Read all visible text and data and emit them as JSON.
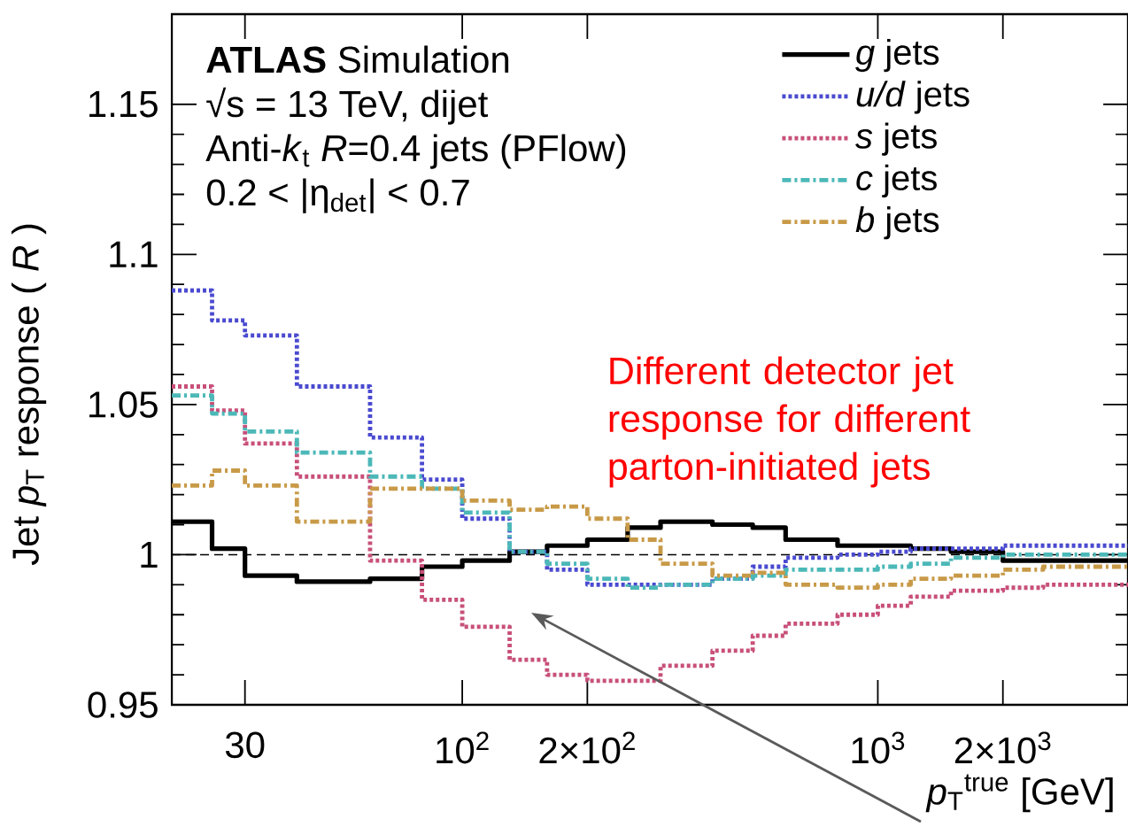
{
  "chart_data": {
    "type": "step",
    "xlabel": "*p*$_{T}$$^{true}$ [GeV]",
    "ylabel": "Jet *p*$_{T}$ response ( *R* )",
    "log": "x",
    "xlim": [
      20,
      4000
    ],
    "ylim": [
      0.95,
      1.18
    ],
    "xticks": [
      30,
      {
        "value": 100,
        "label": "10$^{2}$"
      },
      {
        "value": 200,
        "label": "2×10$^{2}$"
      },
      {
        "value": 1000,
        "label": "10$^{3}$"
      },
      {
        "value": 2000,
        "label": "2×10$^{3}$"
      }
    ],
    "yticks": [
      0.95,
      1,
      1.05,
      1.1,
      1.15
    ],
    "x": [
      20,
      25,
      30,
      40,
      60,
      80,
      100,
      130,
      160,
      200,
      250,
      300,
      400,
      500,
      600,
      800,
      1000,
      1200,
      1500,
      2000,
      2500,
      3000,
      4000
    ],
    "series": [
      {
        "name": "*g* jets",
        "color": "#000000",
        "line_style": "solid",
        "values": [
          1.011,
          1.002,
          0.993,
          0.991,
          0.992,
          0.996,
          0.998,
          1.001,
          1.003,
          1.005,
          1.009,
          1.011,
          1.01,
          1.009,
          1.005,
          1.003,
          1.003,
          1.002,
          1.001,
          0.998,
          0.998,
          0.998,
          0.998
        ]
      },
      {
        "name": "*u/d* jets",
        "color": "#4a4ad0",
        "line_style": "dotted",
        "values": [
          1.088,
          1.078,
          1.073,
          1.056,
          1.039,
          1.025,
          1.012,
          1.001,
          0.995,
          0.99,
          0.99,
          0.99,
          0.992,
          0.996,
          0.999,
          1.0,
          1.001,
          1.002,
          1.002,
          1.003,
          1.003,
          1.003,
          1.003
        ]
      },
      {
        "name": "*s* jets",
        "color": "#c8507a",
        "line_style": "dotted",
        "values": [
          1.056,
          1.048,
          1.037,
          1.026,
          0.998,
          0.985,
          0.976,
          0.965,
          0.96,
          0.958,
          0.958,
          0.963,
          0.968,
          0.973,
          0.977,
          0.98,
          0.983,
          0.986,
          0.988,
          0.989,
          0.99,
          0.99,
          0.99
        ]
      },
      {
        "name": "*c* jets",
        "color": "#4cb8b8",
        "line_style": "dashdot",
        "values": [
          1.053,
          1.047,
          1.041,
          1.034,
          1.026,
          1.022,
          1.014,
          1.001,
          0.997,
          0.992,
          0.989,
          0.99,
          0.992,
          0.993,
          0.995,
          0.995,
          0.996,
          0.997,
          0.999,
          1.0,
          1.0,
          1.0,
          1.0
        ]
      },
      {
        "name": "*b* jets",
        "color": "#c89a48",
        "line_style": "dashdot",
        "values": [
          1.023,
          1.028,
          1.023,
          1.011,
          1.022,
          1.022,
          1.018,
          1.015,
          1.016,
          1.012,
          1.005,
          0.997,
          0.993,
          0.994,
          0.99,
          0.989,
          0.99,
          0.992,
          0.993,
          0.995,
          0.996,
          0.996,
          0.996
        ]
      }
    ],
    "ref_lines": [
      {
        "axis": "y",
        "value": 1,
        "line_style": "dashed",
        "color": "#000000"
      }
    ],
    "legend": "top right",
    "annotations": [
      "**ATLAS** Simulation",
      "√s = 13 TeV, dijet",
      "Anti-*k*$_{t}$ *R*=0.4 jets (PFlow)",
      "0.2 < |η$_{det}$| < 0.7",
      "Different detector jet response for different parton-initiated jets"
    ]
  }
}
